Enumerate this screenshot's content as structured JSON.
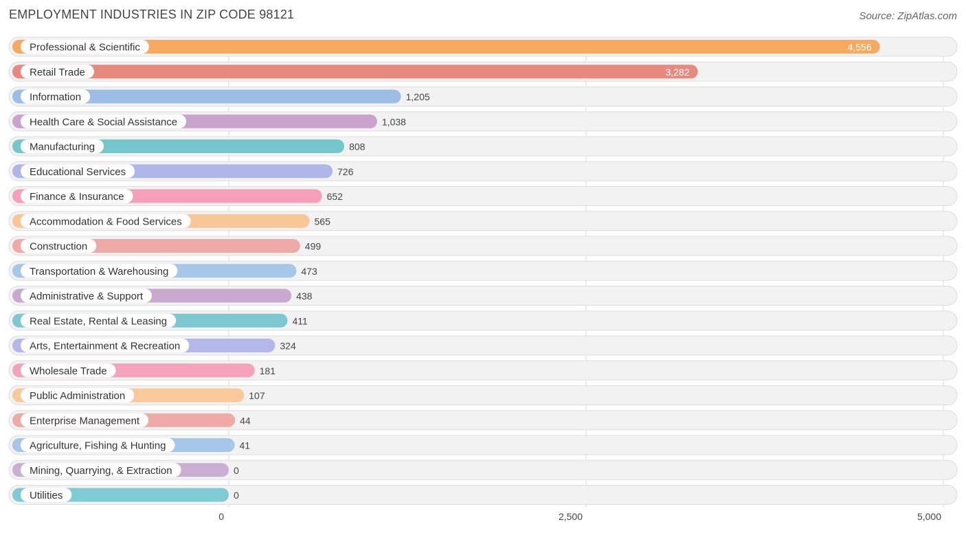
{
  "title": "EMPLOYMENT INDUSTRIES IN ZIP CODE 98121",
  "source": "Source: ZipAtlas.com",
  "chart_data": {
    "type": "bar",
    "orientation": "horizontal",
    "title": "EMPLOYMENT INDUSTRIES IN ZIP CODE 98121",
    "xlim": [
      0,
      5000
    ],
    "ticks": [
      0,
      2500,
      5000
    ],
    "tick_labels": [
      "0",
      "2,500",
      "5,000"
    ],
    "grid": true,
    "categories": [
      "Professional & Scientific",
      "Retail Trade",
      "Information",
      "Health Care & Social Assistance",
      "Manufacturing",
      "Educational Services",
      "Finance & Insurance",
      "Accommodation & Food Services",
      "Construction",
      "Transportation & Warehousing",
      "Administrative & Support",
      "Real Estate, Rental & Leasing",
      "Arts, Entertainment & Recreation",
      "Wholesale Trade",
      "Public Administration",
      "Enterprise Management",
      "Agriculture, Fishing & Hunting",
      "Mining, Quarrying, & Extraction",
      "Utilities"
    ],
    "values": [
      4556,
      3282,
      1205,
      1038,
      808,
      726,
      652,
      565,
      499,
      473,
      438,
      411,
      324,
      181,
      107,
      44,
      41,
      0,
      0
    ],
    "value_labels": [
      "4,556",
      "3,282",
      "1,205",
      "1,038",
      "808",
      "726",
      "652",
      "565",
      "499",
      "473",
      "438",
      "411",
      "324",
      "181",
      "107",
      "44",
      "41",
      "0",
      "0"
    ],
    "colors": [
      "#f6a95f",
      "#e8897f",
      "#9bbde6",
      "#c9a3cb",
      "#74c7cc",
      "#afb7ea",
      "#f59fbb",
      "#f9c796",
      "#eeaaa7",
      "#a6c6ea",
      "#c9a9d0",
      "#7ec8d1",
      "#b3b7ea",
      "#f5a3bd",
      "#f9c99a",
      "#efaaa7",
      "#a6c6ea",
      "#c9b0d3",
      "#7ecbd3"
    ]
  }
}
